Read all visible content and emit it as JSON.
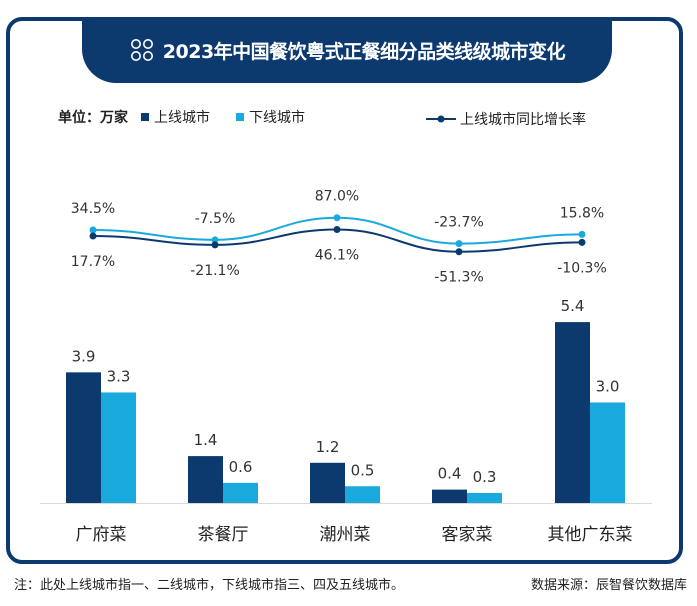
{
  "title": "2023年中国餐饮粤式正餐细分品类线级城市变化",
  "title_icon": "grid-dots-icon",
  "legend": {
    "unit_label": "单位：万家",
    "series_a_label": "上线城市",
    "series_b_label": "下线城市",
    "line_label": "上线城市同比增长率"
  },
  "colors": {
    "frame": "#0d3a6e",
    "series_a": "#0d3a6e",
    "series_b": "#1aa9dc",
    "line_a": "#0d3a6e",
    "line_b": "#1aa9dc"
  },
  "chart_data": {
    "type": "bar",
    "categories": [
      "广府菜",
      "茶餐厅",
      "潮州菜",
      "客家菜",
      "其他广东菜"
    ],
    "series": [
      {
        "name": "上线城市",
        "values": [
          3.9,
          1.4,
          1.2,
          0.4,
          5.4
        ],
        "labels": [
          "3.9",
          "1.4",
          "1.2",
          "0.4",
          "5.4"
        ]
      },
      {
        "name": "下线城市",
        "values": [
          3.3,
          0.6,
          0.5,
          0.3,
          3.0
        ],
        "labels": [
          "3.3",
          "0.6",
          "0.5",
          "0.3",
          "3.0"
        ]
      }
    ],
    "line_series": [
      {
        "name": "上线城市同比增长率",
        "values": [
          17.7,
          -21.1,
          46.1,
          -51.3,
          -10.3
        ],
        "labels": [
          "17.7%",
          "-21.1%",
          "46.1%",
          "-51.3%",
          "-10.3%"
        ]
      },
      {
        "values": [
          34.5,
          -7.5,
          87.0,
          -23.7,
          15.8
        ],
        "labels": [
          "34.5%",
          "-7.5%",
          "87.0%",
          "-23.7%",
          "15.8%"
        ]
      }
    ],
    "ylim": [
      0,
      6
    ],
    "grid": false,
    "legend_position": "top"
  },
  "footnote": {
    "note": "注：此处上线城市指一、二线城市，下线城市指三、四及五线城市。",
    "source": "数据来源：辰智餐饮数据库"
  }
}
